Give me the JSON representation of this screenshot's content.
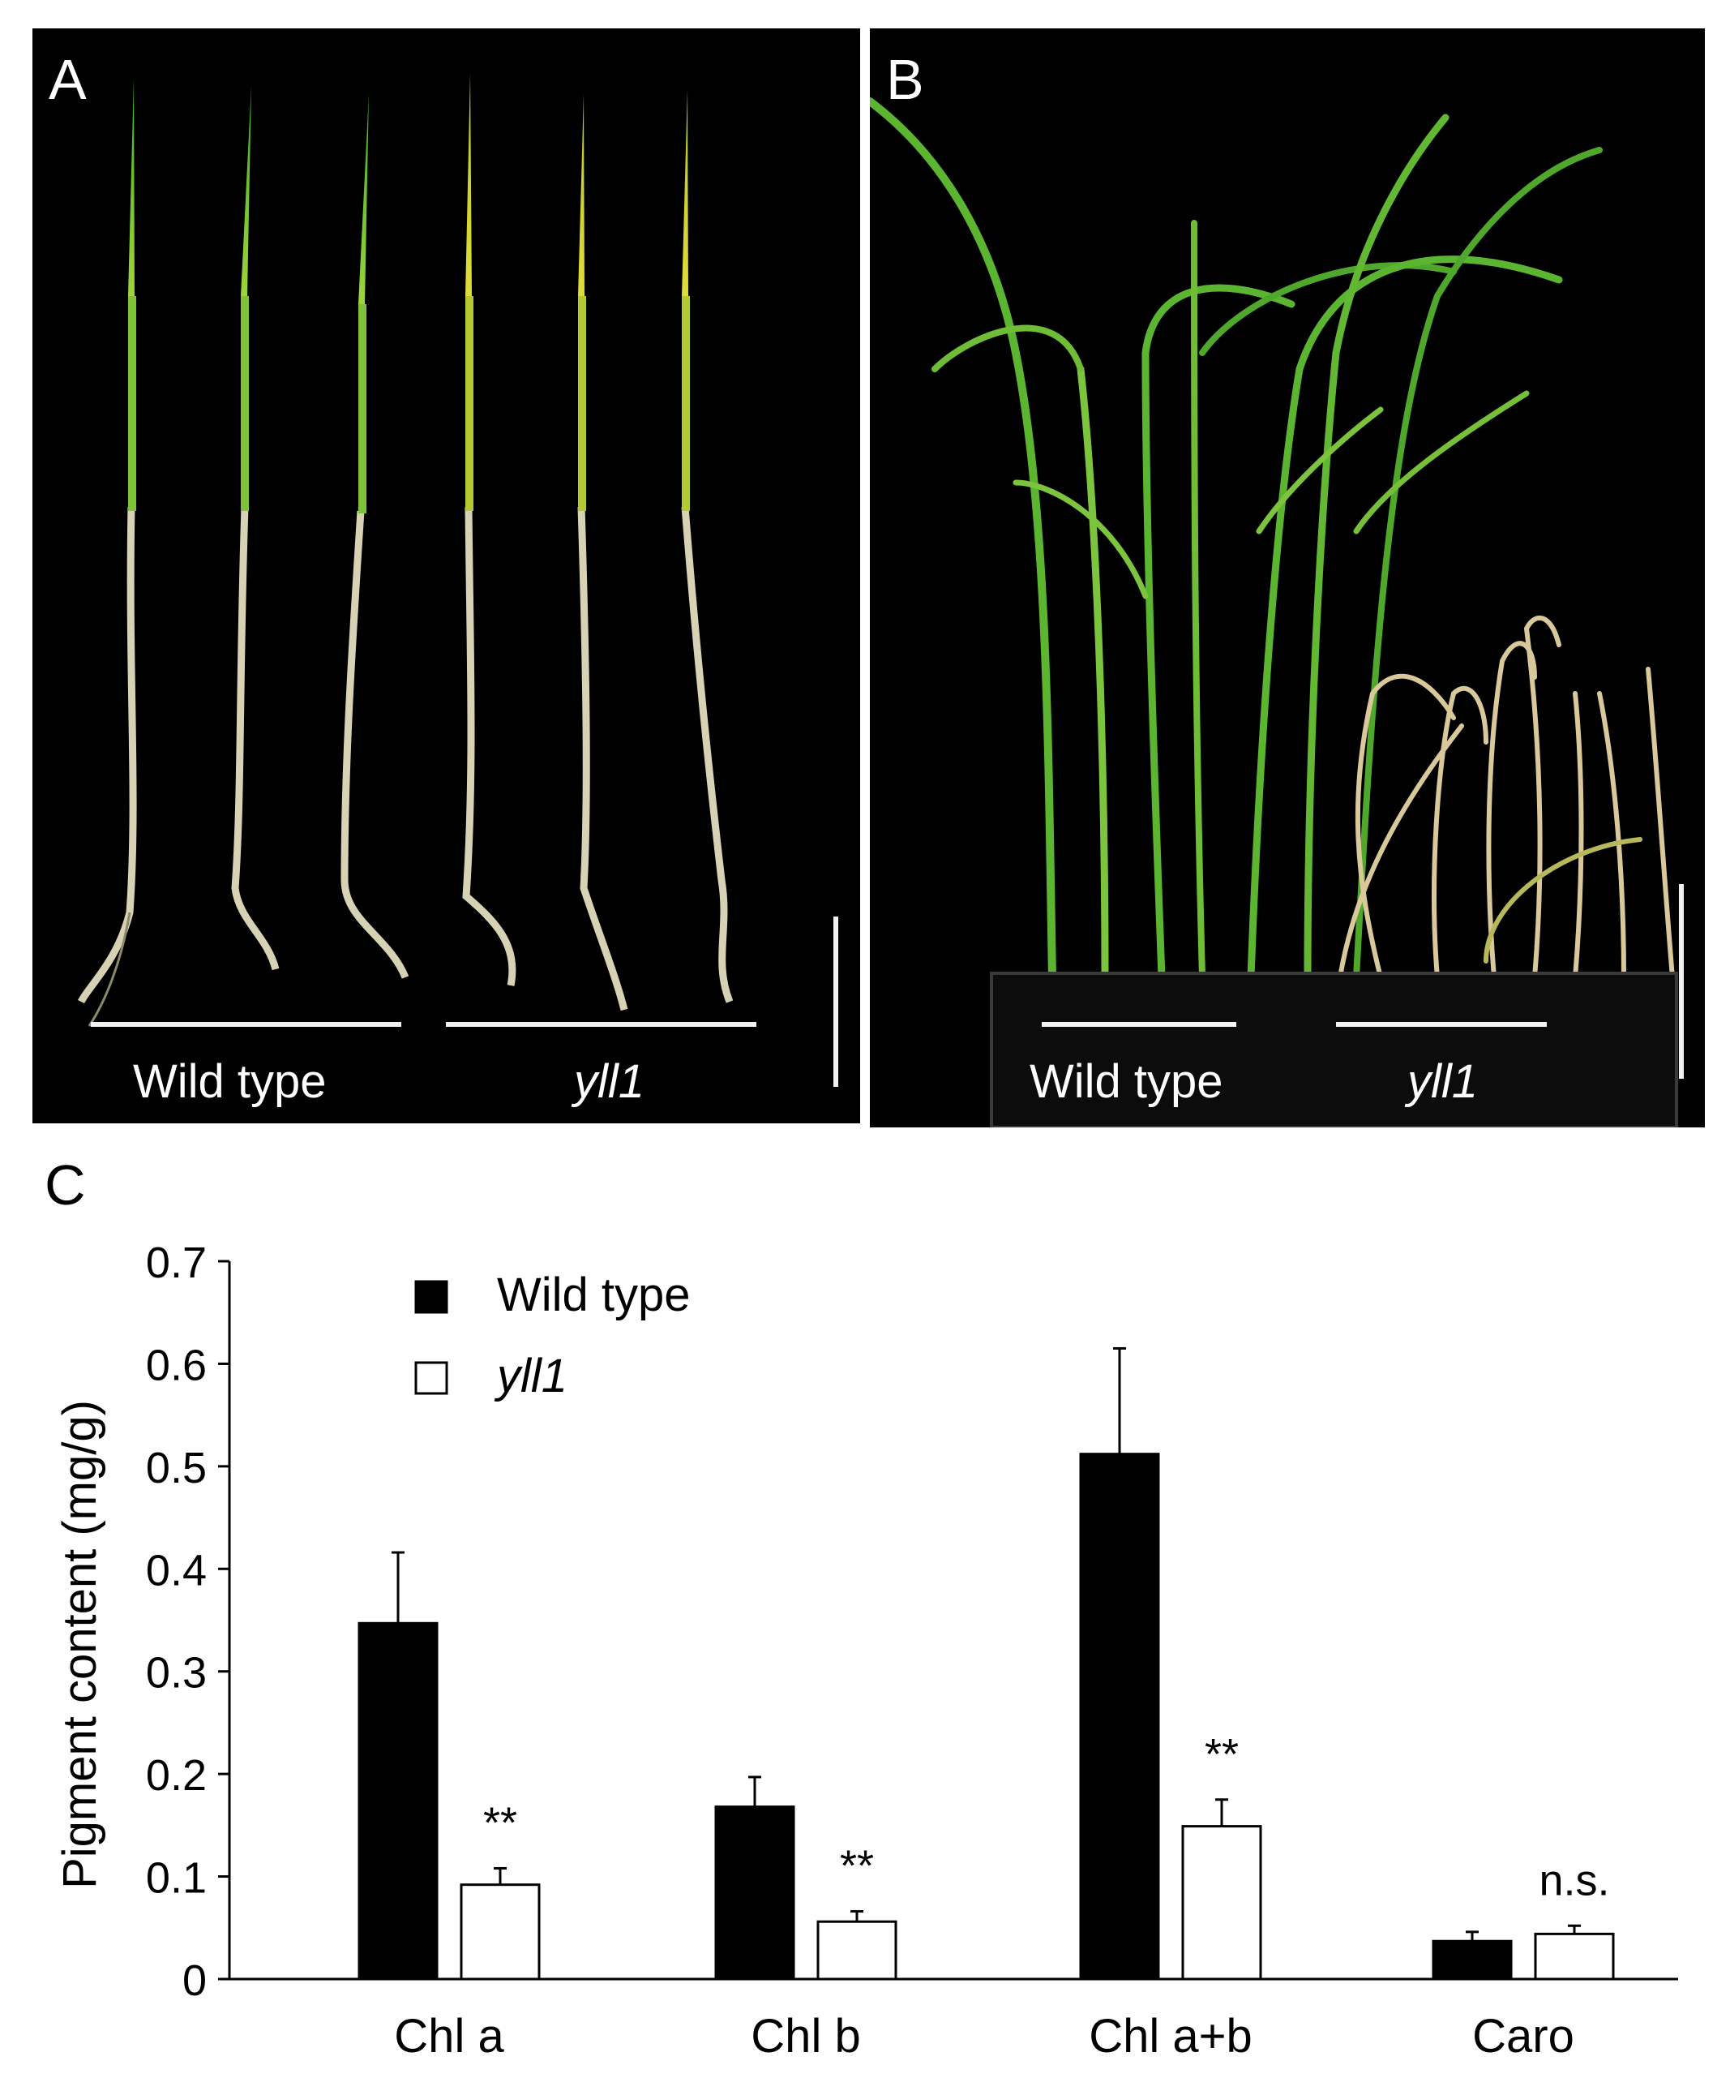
{
  "panels": {
    "A": {
      "label": "A",
      "captions": {
        "left": "Wild type",
        "right": "yll1"
      }
    },
    "B": {
      "label": "B",
      "captions": {
        "left": "Wild type",
        "right": "yll1"
      }
    }
  },
  "chart_label": "C",
  "chart_data": {
    "type": "bar",
    "categories": [
      "Chl a",
      "Chl b",
      "Chl a+b",
      "Caro"
    ],
    "series": [
      {
        "name": "Wild type",
        "values": [
          0.347,
          0.168,
          0.512,
          0.037
        ],
        "errors": [
          0.069,
          0.029,
          0.103,
          0.009
        ],
        "fill": "#000000"
      },
      {
        "name": "yll1",
        "values": [
          0.092,
          0.056,
          0.149,
          0.044
        ],
        "errors": [
          0.016,
          0.01,
          0.026,
          0.008
        ],
        "fill": "#ffffff"
      }
    ],
    "annotations": [
      "**",
      "**",
      "**",
      "n.s."
    ],
    "ylabel": "Pigment content (mg/g)",
    "ylim": [
      0,
      0.7
    ],
    "yticks": [
      "0",
      "0.1",
      "0.2",
      "0.3",
      "0.4",
      "0.5",
      "0.6",
      "0.7"
    ],
    "legend": "top-left",
    "grid": false
  }
}
